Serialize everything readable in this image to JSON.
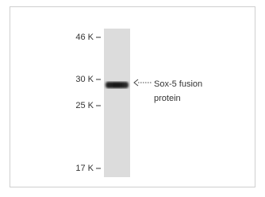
{
  "markers": [
    "46 K",
    "30 K",
    "25 K",
    "17 K"
  ],
  "annotation": {
    "lines": [
      "Sox-5 fusion",
      "protein"
    ]
  }
}
